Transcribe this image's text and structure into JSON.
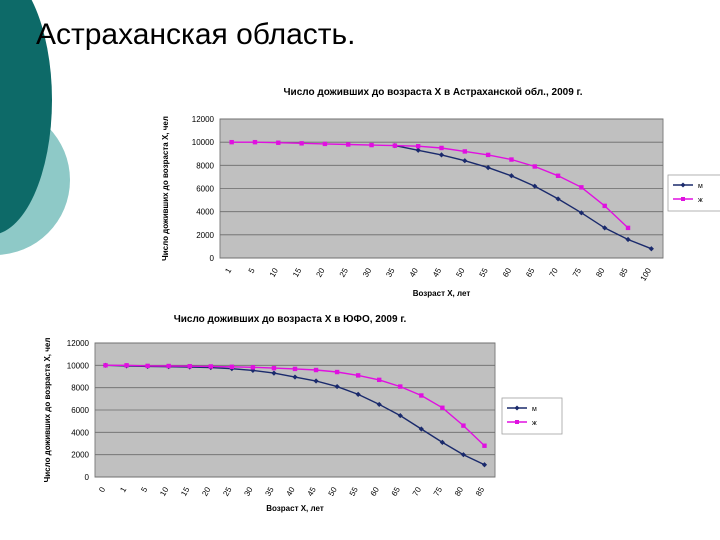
{
  "slide": {
    "title": "Астраханская область."
  },
  "colors": {
    "series_m": "#1a2a6c",
    "series_f": "#e010e0",
    "plot_bg": "#c0c0c0",
    "deco_dark": "#0d6a68",
    "deco_light": "#8ec9c7"
  },
  "chart_data": [
    {
      "type": "line",
      "title": "Число доживших до возраста X в Астраханской обл., 2009 г.",
      "xlabel": "Возраст X, лет",
      "ylabel": "Число доживших до возраста X, чел",
      "categories": [
        "1",
        "5",
        "10",
        "15",
        "20",
        "25",
        "30",
        "35",
        "40",
        "45",
        "50",
        "55",
        "60",
        "65",
        "70",
        "75",
        "80",
        "85",
        "100"
      ],
      "ylim": [
        0,
        12000
      ],
      "yticks": [
        "0",
        "2000",
        "4000",
        "6000",
        "8000",
        "10000",
        "12000"
      ],
      "grid": true,
      "legend": "right",
      "series": [
        {
          "name": "м",
          "values": [
            null,
            null,
            null,
            null,
            null,
            null,
            null,
            9700,
            9300,
            8900,
            8400,
            7800,
            7100,
            6200,
            5100,
            3900,
            2600,
            1600,
            800
          ]
        },
        {
          "name": "ж",
          "values": [
            10000,
            10000,
            9950,
            9900,
            9850,
            9800,
            9750,
            9700,
            9650,
            9500,
            9200,
            8900,
            8500,
            7900,
            7100,
            6100,
            4500,
            2600,
            null
          ]
        }
      ]
    },
    {
      "type": "line",
      "title": "Число доживших до возраста X в ЮФО, 2009 г.",
      "xlabel": "Возраст X, лет",
      "ylabel": "Число доживших до возраста X, чел",
      "categories": [
        "0",
        "1",
        "5",
        "10",
        "15",
        "20",
        "25",
        "30",
        "35",
        "40",
        "45",
        "50",
        "55",
        "60",
        "65",
        "70",
        "75",
        "80",
        "85"
      ],
      "ylim": [
        0,
        12000
      ],
      "yticks": [
        "0",
        "2000",
        "4000",
        "6000",
        "8000",
        "10000",
        "12000"
      ],
      "grid": true,
      "legend": "right",
      "series": [
        {
          "name": "м",
          "values": [
            10000,
            9950,
            9900,
            9880,
            9850,
            9800,
            9700,
            9550,
            9300,
            8950,
            8600,
            8100,
            7400,
            6500,
            5500,
            4300,
            3100,
            2000,
            1100
          ]
        },
        {
          "name": "ж",
          "values": [
            10000,
            10000,
            9950,
            9940,
            9920,
            9900,
            9870,
            9820,
            9750,
            9680,
            9580,
            9400,
            9100,
            8700,
            8100,
            7300,
            6200,
            4600,
            2800
          ]
        }
      ]
    }
  ]
}
